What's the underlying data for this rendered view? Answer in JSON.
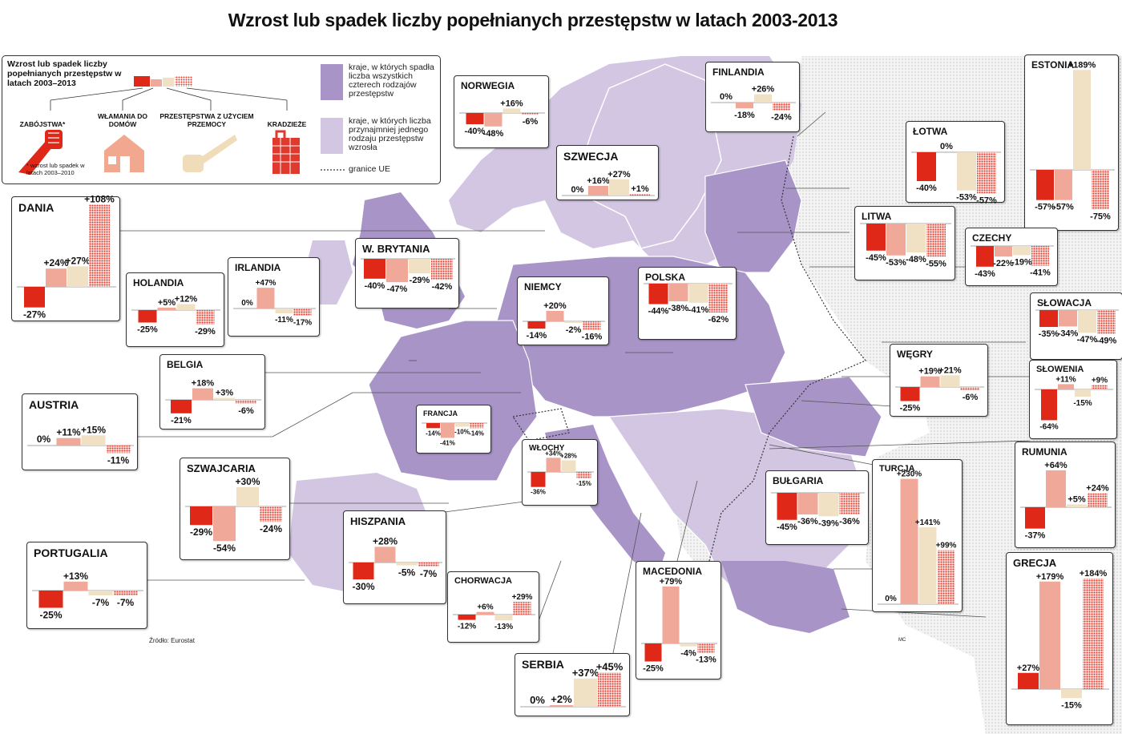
{
  "title": "Wzrost lub spadek liczby popełnianych przestępstw w latach 2003-2013",
  "source": "Źródło: Eurostat",
  "signature": "MC",
  "colors": {
    "zabojstwa": "#e02818",
    "wlamania": "#f0a898",
    "przemoc": "#f0e0c4",
    "kradzieze": "#e03a2e",
    "kraje_spadek": "#a994c8",
    "kraje_wzrost": "#d2c6e2",
    "poza_ue": "#eeeeee"
  },
  "legend": {
    "title": "Wzrost lub spadek liczby popełnianych przestępstw w latach 2003–2013",
    "categories": [
      {
        "label": "ZABÓJSTWA*",
        "icon": "knife-hand-icon"
      },
      {
        "label": "WŁAMANIA DO DOMÓW",
        "icon": "house-icon"
      },
      {
        "label": "PRZESTĘPSTWA Z UŻYCIEM PRZEMOCY",
        "icon": "bat-icon"
      },
      {
        "label": "KRADZIEŻE",
        "icon": "bag-icon"
      }
    ],
    "footnote": "* wzrost lub spadek w latach 2003–2010",
    "region_decrease": "kraje, w których spadła liczba wszystkich czterech rodzajów przestępstw",
    "region_increase": "kraje, w których liczba przynajmniej jednego rodzaju przestępstw wzrosła",
    "eu_border": "granice UE"
  },
  "chart_data": {
    "type": "bar",
    "title": "Wzrost lub spadek liczby popełnianych przestępstw w latach 2003-2013",
    "categories": [
      "ZABÓJSTWA*",
      "WŁAMANIA DO DOMÓW",
      "PRZESTĘPSTWA Z UŻYCIEM PRZEMOCY",
      "KRADZIEŻE"
    ],
    "unit": "%",
    "countries": [
      {
        "name": "NORWEGIA",
        "values": [
          -40,
          -48,
          16,
          -6
        ]
      },
      {
        "name": "FINLANDIA",
        "values": [
          0,
          -18,
          26,
          -24
        ]
      },
      {
        "name": "ESTONIA",
        "values": [
          -57,
          -57,
          189,
          -75
        ]
      },
      {
        "name": "ŁOTWA",
        "values": [
          -40,
          0,
          -53,
          -57
        ]
      },
      {
        "name": "SZWECJA",
        "values": [
          0,
          16,
          27,
          1
        ]
      },
      {
        "name": "DANIA",
        "values": [
          -27,
          24,
          27,
          108
        ]
      },
      {
        "name": "LITWA",
        "values": [
          -45,
          -53,
          -48,
          -55
        ]
      },
      {
        "name": "CZECHY",
        "values": [
          -43,
          -22,
          -19,
          -41
        ]
      },
      {
        "name": "W. BRYTANIA",
        "values": [
          -40,
          -47,
          -29,
          -42
        ]
      },
      {
        "name": "IRLANDIA",
        "values": [
          0,
          47,
          -11,
          -17
        ]
      },
      {
        "name": "HOLANDIA",
        "values": [
          -25,
          5,
          12,
          -29
        ]
      },
      {
        "name": "NIEMCY",
        "values": [
          -14,
          20,
          -2,
          -16
        ]
      },
      {
        "name": "POLSKA",
        "values": [
          -44,
          -38,
          -41,
          -62
        ]
      },
      {
        "name": "SŁOWACJA",
        "values": [
          -35,
          -34,
          -47,
          -49
        ]
      },
      {
        "name": "BELGIA",
        "values": [
          -21,
          18,
          3,
          -6
        ]
      },
      {
        "name": "WĘGRY",
        "values": [
          -25,
          19,
          21,
          -6
        ]
      },
      {
        "name": "SŁOWENIA",
        "values": [
          -64,
          11,
          -15,
          9
        ]
      },
      {
        "name": "AUSTRIA",
        "values": [
          0,
          11,
          15,
          -11
        ]
      },
      {
        "name": "FRANCJA",
        "values": [
          -14,
          -41,
          -10,
          -14
        ]
      },
      {
        "name": "WŁOCHY",
        "values": [
          -36,
          34,
          28,
          -15
        ]
      },
      {
        "name": "RUMUNIA",
        "values": [
          -37,
          64,
          5,
          24
        ]
      },
      {
        "name": "SZWAJCARIA",
        "values": [
          -29,
          -54,
          30,
          -24
        ]
      },
      {
        "name": "BUŁGARIA",
        "values": [
          -45,
          -36,
          -39,
          -36
        ]
      },
      {
        "name": "TURCJA",
        "values": [
          0,
          230,
          141,
          99
        ]
      },
      {
        "name": "HISZPANIA",
        "values": [
          -30,
          28,
          -5,
          -7
        ]
      },
      {
        "name": "PORTUGALIA",
        "values": [
          -25,
          13,
          -7,
          -7
        ]
      },
      {
        "name": "CHORWACJA",
        "values": [
          -12,
          6,
          -13,
          29
        ]
      },
      {
        "name": "MACEDONIA",
        "values": [
          -25,
          79,
          -4,
          -13
        ]
      },
      {
        "name": "GRECJA",
        "values": [
          27,
          179,
          -15,
          184
        ]
      },
      {
        "name": "SERBIA",
        "values": [
          0,
          2,
          37,
          45
        ]
      }
    ]
  }
}
